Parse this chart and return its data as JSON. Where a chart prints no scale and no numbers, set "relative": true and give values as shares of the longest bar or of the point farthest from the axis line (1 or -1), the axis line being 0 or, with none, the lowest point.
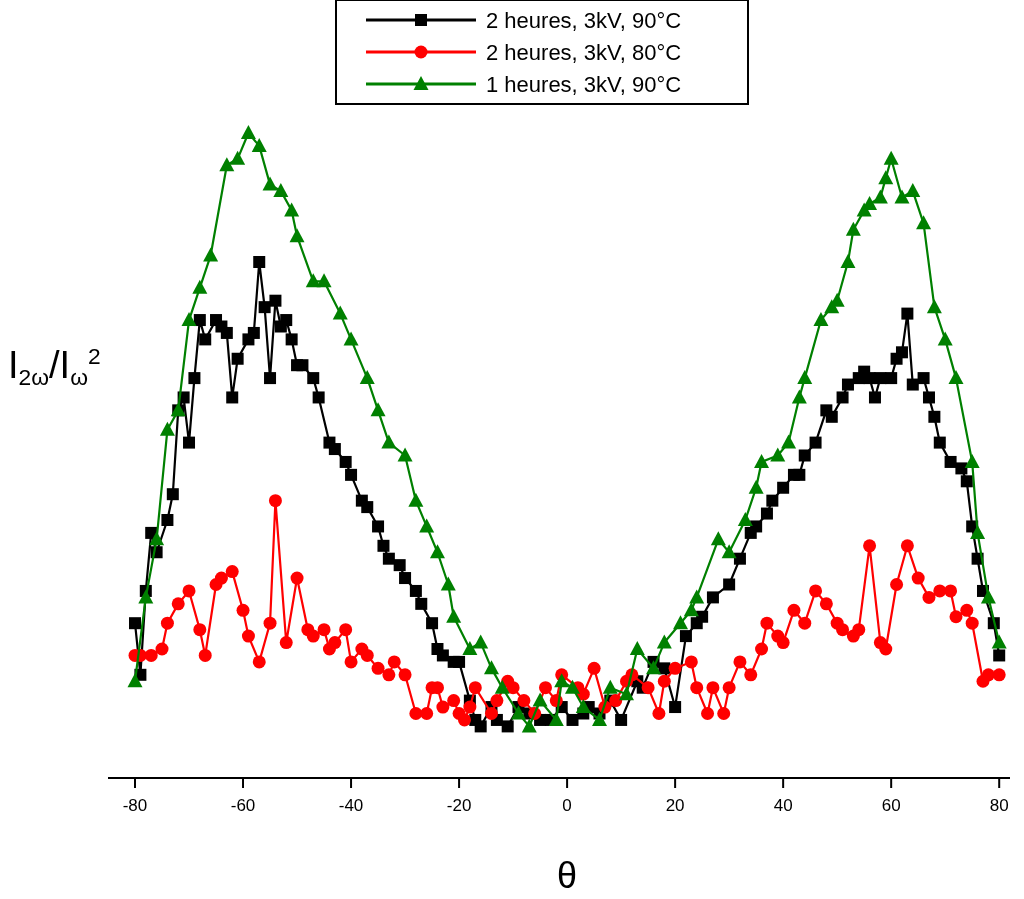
{
  "chart_data": {
    "type": "line",
    "relative": true,
    "xlabel": "θ",
    "ylabel": "I$_{2ω}$/I$_{ω}$$^{2}$",
    "xlim": [
      -85,
      82
    ],
    "xticks": [
      -80,
      -60,
      -40,
      -20,
      0,
      20,
      40,
      60,
      80
    ],
    "legend": "top",
    "grid": false,
    "line_style": "solid",
    "series": [
      {
        "name": "2 heures, 3kV, 90°C",
        "color": "#000000",
        "marker": "square",
        "x": [
          -80,
          -79,
          -78,
          -77,
          -76,
          -74,
          -73,
          -72,
          -71,
          -70,
          -69,
          -68,
          -67,
          -65,
          -64,
          -63,
          -62,
          -61,
          -59,
          -58,
          -57,
          -56,
          -55,
          -54,
          -53,
          -52,
          -51,
          -50,
          -49,
          -47,
          -46,
          -44,
          -43,
          -41,
          -40,
          -38,
          -37,
          -35,
          -34,
          -33,
          -31,
          -30,
          -28,
          -27,
          -25,
          -24,
          -23,
          -21,
          -20,
          -18,
          -17,
          -16,
          -14,
          -13,
          -11,
          -9,
          -7,
          -5,
          -3,
          -1,
          1,
          3,
          4,
          6,
          8,
          10,
          13,
          14,
          16,
          18,
          20,
          22,
          24,
          25,
          27,
          30,
          32,
          34,
          35,
          37,
          38,
          40,
          42,
          43,
          44,
          46,
          48,
          49,
          51,
          52,
          54,
          55,
          56,
          57,
          58,
          60,
          61,
          62,
          63,
          64,
          66,
          67,
          68,
          69,
          71,
          73,
          74,
          75,
          76,
          77,
          79,
          80
        ],
        "values": [
          0.24,
          0.16,
          0.29,
          0.38,
          0.35,
          0.4,
          0.44,
          0.57,
          0.59,
          0.52,
          0.62,
          0.71,
          0.68,
          0.71,
          0.7,
          0.69,
          0.59,
          0.65,
          0.68,
          0.69,
          0.8,
          0.73,
          0.62,
          0.74,
          0.7,
          0.71,
          0.68,
          0.64,
          0.64,
          0.62,
          0.59,
          0.52,
          0.51,
          0.49,
          0.47,
          0.43,
          0.42,
          0.39,
          0.36,
          0.34,
          0.33,
          0.31,
          0.29,
          0.27,
          0.24,
          0.2,
          0.19,
          0.18,
          0.18,
          0.12,
          0.09,
          0.08,
          0.11,
          0.09,
          0.08,
          0.11,
          0.1,
          0.09,
          0.09,
          0.11,
          0.09,
          0.1,
          0.11,
          0.1,
          0.12,
          0.09,
          0.15,
          0.14,
          0.18,
          0.17,
          0.11,
          0.22,
          0.24,
          0.25,
          0.28,
          0.3,
          0.34,
          0.38,
          0.39,
          0.41,
          0.43,
          0.45,
          0.47,
          0.47,
          0.5,
          0.52,
          0.57,
          0.56,
          0.59,
          0.61,
          0.62,
          0.63,
          0.62,
          0.59,
          0.62,
          0.62,
          0.65,
          0.66,
          0.72,
          0.61,
          0.62,
          0.59,
          0.56,
          0.52,
          0.49,
          0.48,
          0.46,
          0.39,
          0.34,
          0.29,
          0.24,
          0.19
        ]
      },
      {
        "name": "2 heures, 3kV, 80°C",
        "color": "#ff0000",
        "marker": "circle",
        "x": [
          -80,
          -79,
          -77,
          -75,
          -74,
          -72,
          -70,
          -68,
          -67,
          -65,
          -64,
          -62,
          -60,
          -59,
          -57,
          -55,
          -54,
          -52,
          -50,
          -48,
          -47,
          -45,
          -44,
          -43,
          -41,
          -40,
          -38,
          -37,
          -35,
          -33,
          -32,
          -30,
          -28,
          -26,
          -25,
          -24,
          -23,
          -21,
          -20,
          -19,
          -18,
          -17,
          -14,
          -13,
          -11,
          -10,
          -8,
          -6,
          -4,
          -2,
          -1,
          2,
          3,
          5,
          7,
          9,
          11,
          12,
          15,
          17,
          18,
          20,
          23,
          24,
          26,
          27,
          29,
          30,
          32,
          34,
          36,
          37,
          39,
          40,
          42,
          44,
          46,
          48,
          50,
          51,
          53,
          54,
          56,
          58,
          59,
          61,
          63,
          65,
          67,
          69,
          71,
          72,
          74,
          75,
          77,
          78,
          80
        ],
        "values": [
          0.19,
          0.19,
          0.19,
          0.2,
          0.24,
          0.27,
          0.29,
          0.23,
          0.19,
          0.3,
          0.31,
          0.32,
          0.26,
          0.22,
          0.18,
          0.24,
          0.43,
          0.21,
          0.31,
          0.23,
          0.22,
          0.23,
          0.2,
          0.21,
          0.23,
          0.18,
          0.2,
          0.19,
          0.17,
          0.16,
          0.18,
          0.16,
          0.1,
          0.1,
          0.14,
          0.14,
          0.11,
          0.12,
          0.1,
          0.09,
          0.11,
          0.14,
          0.1,
          0.12,
          0.15,
          0.14,
          0.12,
          0.1,
          0.14,
          0.12,
          0.16,
          0.14,
          0.13,
          0.17,
          0.11,
          0.12,
          0.15,
          0.16,
          0.14,
          0.1,
          0.15,
          0.17,
          0.18,
          0.14,
          0.1,
          0.14,
          0.1,
          0.14,
          0.18,
          0.16,
          0.2,
          0.24,
          0.22,
          0.21,
          0.26,
          0.24,
          0.29,
          0.27,
          0.24,
          0.23,
          0.22,
          0.23,
          0.36,
          0.21,
          0.2,
          0.3,
          0.36,
          0.31,
          0.28,
          0.29,
          0.29,
          0.25,
          0.26,
          0.24,
          0.15,
          0.16,
          0.16
        ]
      },
      {
        "name": "1 heures, 3kV, 90°C",
        "color": "#008000",
        "marker": "triangle",
        "x": [
          -80,
          -78,
          -76,
          -74,
          -72,
          -70,
          -68,
          -66,
          -63,
          -61,
          -59,
          -57,
          -55,
          -53,
          -51,
          -50,
          -47,
          -45,
          -42,
          -40,
          -37,
          -35,
          -33,
          -30,
          -28,
          -26,
          -24,
          -22,
          -21,
          -18,
          -16,
          -14,
          -12,
          -9,
          -7,
          -5,
          -2,
          -1,
          1,
          3,
          6,
          8,
          11,
          13,
          16,
          18,
          21,
          23,
          24,
          28,
          30,
          33,
          35,
          36,
          39,
          41,
          43,
          44,
          47,
          49,
          50,
          52,
          53,
          55,
          56,
          58,
          59,
          60,
          62,
          64,
          66,
          68,
          70,
          72,
          75,
          76,
          78,
          80
        ],
        "values": [
          0.15,
          0.28,
          0.37,
          0.54,
          0.57,
          0.71,
          0.76,
          0.81,
          0.95,
          0.96,
          1.0,
          0.98,
          0.92,
          0.91,
          0.88,
          0.84,
          0.77,
          0.77,
          0.72,
          0.68,
          0.62,
          0.57,
          0.52,
          0.5,
          0.43,
          0.39,
          0.35,
          0.3,
          0.25,
          0.2,
          0.21,
          0.17,
          0.14,
          0.1,
          0.08,
          0.12,
          0.09,
          0.15,
          0.14,
          0.11,
          0.09,
          0.14,
          0.13,
          0.2,
          0.17,
          0.21,
          0.24,
          0.26,
          0.28,
          0.37,
          0.35,
          0.4,
          0.45,
          0.49,
          0.5,
          0.52,
          0.59,
          0.62,
          0.71,
          0.73,
          0.74,
          0.8,
          0.85,
          0.88,
          0.89,
          0.9,
          0.93,
          0.96,
          0.9,
          0.91,
          0.86,
          0.73,
          0.68,
          0.62,
          0.49,
          0.38,
          0.28,
          0.21
        ]
      }
    ]
  }
}
